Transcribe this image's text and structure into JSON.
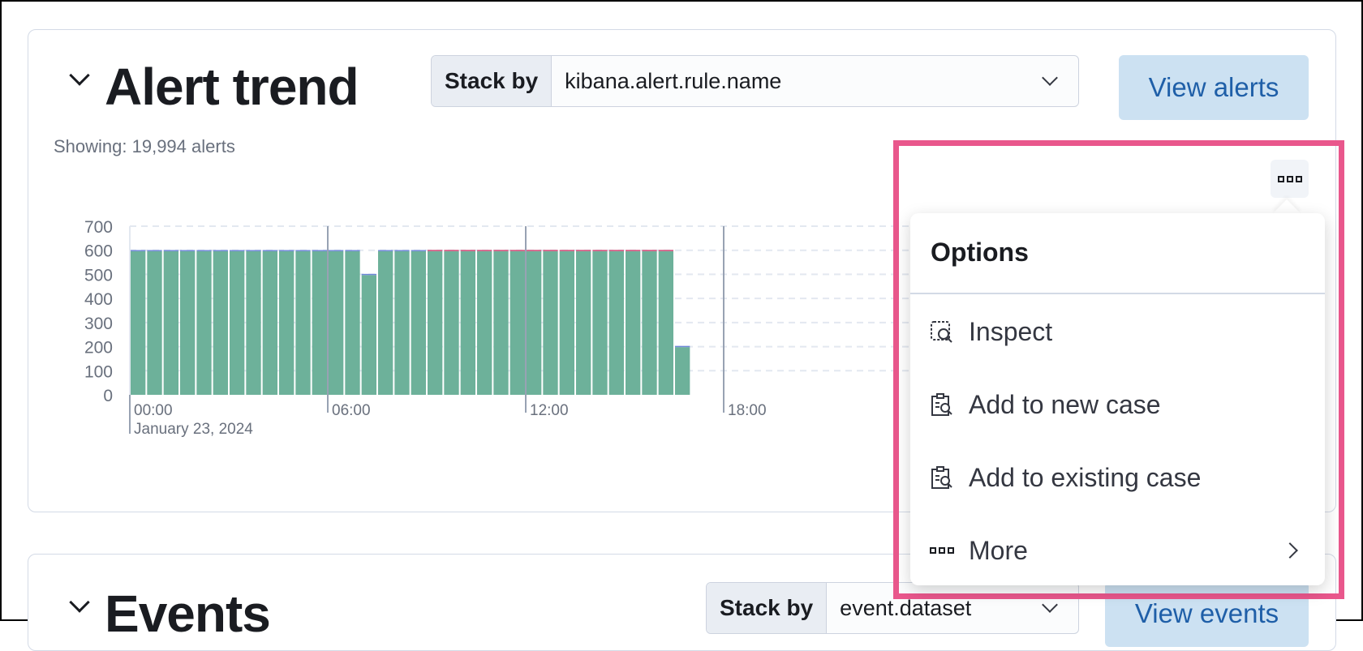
{
  "alert_trend": {
    "title": "Alert trend",
    "stack_by_label": "Stack by",
    "stack_by_value": "kibana.alert.rule.name",
    "view_button": "View alerts",
    "showing": "Showing: 19,994 alerts"
  },
  "events": {
    "title": "Events",
    "stack_by_label": "Stack by",
    "stack_by_value": "event.dataset",
    "view_button": "View events"
  },
  "menu": {
    "title": "Options",
    "items": [
      {
        "label": "Inspect",
        "icon": "inspect-icon"
      },
      {
        "label": "Add to new case",
        "icon": "casesApp-icon"
      },
      {
        "label": "Add to existing case",
        "icon": "casesApp-icon"
      },
      {
        "label": "More",
        "icon": "boxes-horizontal-icon",
        "submenu": true
      }
    ]
  },
  "colors": {
    "highlight": "#e9578c",
    "accent": "#1f5fa8",
    "series": [
      "#6db19a",
      "#6f87d8",
      "#d36086"
    ]
  },
  "chart_data": {
    "type": "bar",
    "stacked": true,
    "interval": "30m",
    "x_ticks": [
      "00:00",
      "06:00",
      "12:00",
      "18:00"
    ],
    "x_sublabel": "January 23, 2024",
    "y_ticks": [
      0,
      100,
      200,
      300,
      400,
      500,
      600,
      700
    ],
    "ylim": [
      0,
      700
    ],
    "grid": "horizontal dashed",
    "categories": [
      "00:00",
      "00:30",
      "01:00",
      "01:30",
      "02:00",
      "02:30",
      "03:00",
      "03:30",
      "04:00",
      "04:30",
      "05:00",
      "05:30",
      "06:00",
      "06:30",
      "07:00",
      "07:30",
      "08:00",
      "08:30",
      "09:00",
      "09:30",
      "10:00",
      "10:30",
      "11:00",
      "11:30",
      "12:00",
      "12:30",
      "13:00",
      "13:30",
      "14:00",
      "14:30",
      "15:00",
      "15:30",
      "16:00",
      "16:30"
    ],
    "series": [
      {
        "values": [
          596,
          596,
          596,
          596,
          596,
          596,
          596,
          596,
          596,
          596,
          596,
          596,
          596,
          596,
          497,
          596,
          596,
          596,
          596,
          596,
          596,
          596,
          596,
          596,
          596,
          596,
          596,
          596,
          596,
          596,
          596,
          596,
          596,
          198
        ]
      },
      {
        "values": [
          5,
          5,
          5,
          5,
          5,
          5,
          5,
          5,
          5,
          5,
          5,
          5,
          5,
          5,
          5,
          5,
          5,
          5,
          0,
          0,
          0,
          0,
          0,
          0,
          0,
          0,
          0,
          0,
          0,
          0,
          0,
          0,
          0,
          5
        ]
      },
      {
        "values": [
          0,
          0,
          0,
          0,
          0,
          0,
          0,
          0,
          0,
          0,
          0,
          0,
          0,
          0,
          0,
          0,
          0,
          0,
          6,
          6,
          6,
          6,
          6,
          6,
          6,
          6,
          6,
          6,
          6,
          6,
          6,
          6,
          6,
          0
        ]
      }
    ]
  }
}
